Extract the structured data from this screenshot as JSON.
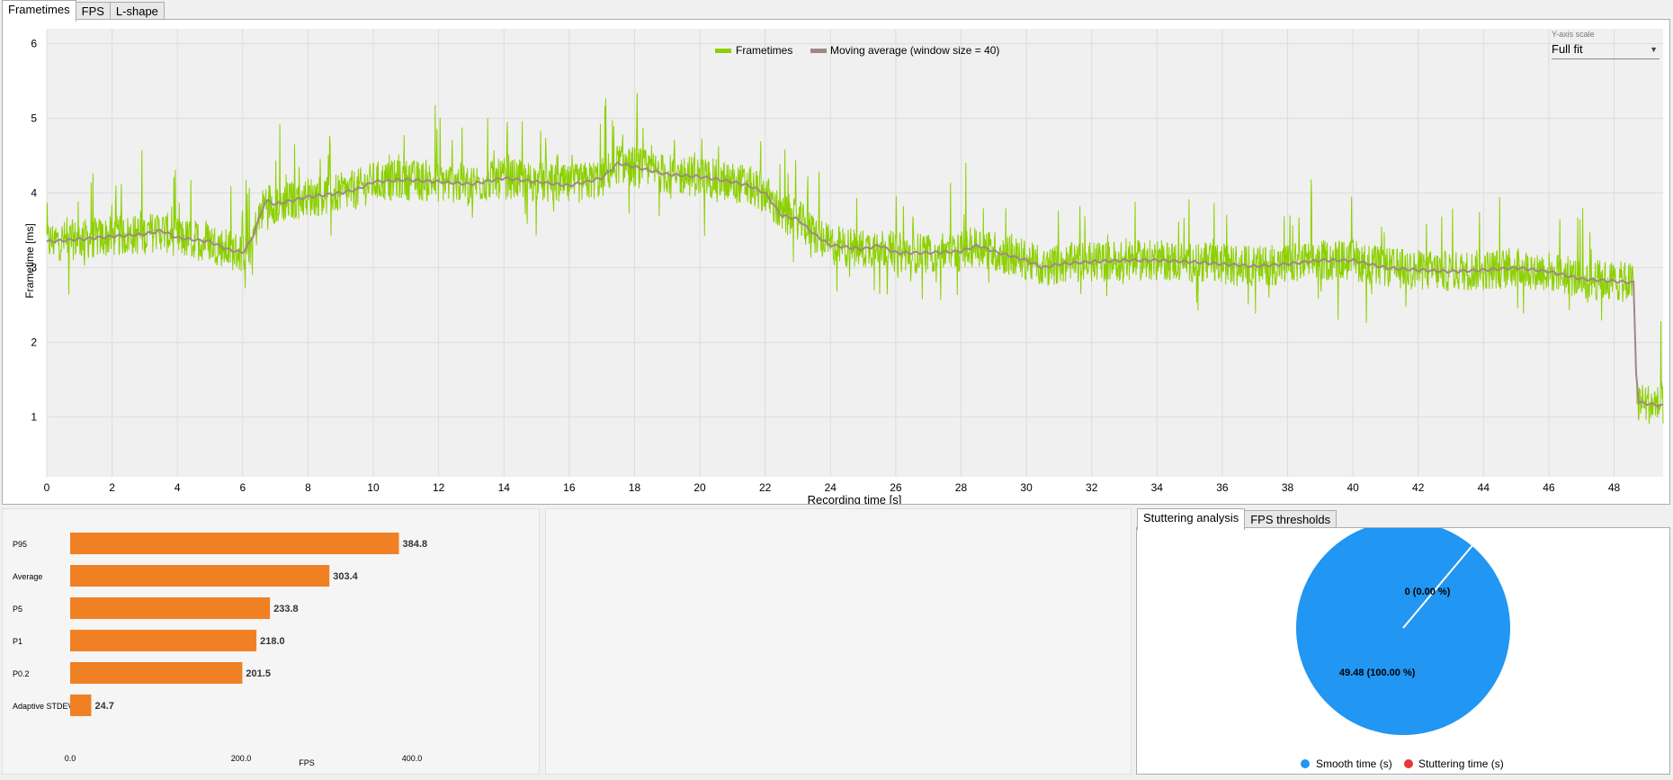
{
  "top_tabs": [
    {
      "label": "Frametimes",
      "active": true
    },
    {
      "label": "FPS",
      "active": false
    },
    {
      "label": "L-shape",
      "active": false
    }
  ],
  "frametime_chart": {
    "chart_data": {
      "type": "line",
      "xlabel": "Recording time [s]",
      "ylabel": "Frametime [ms]",
      "xlim": [
        0,
        49.5
      ],
      "ylim": [
        0.2,
        6.2
      ],
      "x_ticks": [
        "0",
        "2",
        "4",
        "6",
        "8",
        "10",
        "12",
        "14",
        "16",
        "18",
        "20",
        "22",
        "24",
        "26",
        "28",
        "30",
        "32",
        "34",
        "36",
        "38",
        "40",
        "42",
        "44",
        "46",
        "48"
      ],
      "y_ticks": [
        "1",
        "2",
        "3",
        "4",
        "5",
        "6"
      ],
      "grid": true,
      "legend_position": "top-center",
      "series": [
        {
          "name": "Frametimes",
          "color": "#8cd000",
          "noisy": true
        },
        {
          "name": "Moving average (window size = 40)",
          "color": "#9c8a86"
        }
      ],
      "moving_average": [
        [
          0,
          3.35
        ],
        [
          1,
          3.38
        ],
        [
          2,
          3.42
        ],
        [
          3,
          3.45
        ],
        [
          3.5,
          3.5
        ],
        [
          4,
          3.4
        ],
        [
          5,
          3.35
        ],
        [
          5.5,
          3.25
        ],
        [
          6,
          3.2
        ],
        [
          6.3,
          3.4
        ],
        [
          6.7,
          3.9
        ],
        [
          7,
          3.85
        ],
        [
          7.5,
          3.9
        ],
        [
          8,
          3.95
        ],
        [
          9,
          4.0
        ],
        [
          9.5,
          4.05
        ],
        [
          10,
          4.15
        ],
        [
          11,
          4.18
        ],
        [
          12,
          4.15
        ],
        [
          13,
          4.12
        ],
        [
          14,
          4.2
        ],
        [
          15,
          4.15
        ],
        [
          16,
          4.1
        ],
        [
          16.5,
          4.15
        ],
        [
          17,
          4.2
        ],
        [
          17.5,
          4.4
        ],
        [
          18,
          4.35
        ],
        [
          19,
          4.25
        ],
        [
          20,
          4.22
        ],
        [
          21,
          4.15
        ],
        [
          21.5,
          4.1
        ],
        [
          22,
          4.0
        ],
        [
          22.5,
          3.7
        ],
        [
          23,
          3.65
        ],
        [
          23.5,
          3.45
        ],
        [
          24,
          3.3
        ],
        [
          25,
          3.25
        ],
        [
          25.5,
          3.3
        ],
        [
          26,
          3.2
        ],
        [
          27,
          3.2
        ],
        [
          28,
          3.22
        ],
        [
          28.5,
          3.3
        ],
        [
          29,
          3.22
        ],
        [
          30,
          3.1
        ],
        [
          30.5,
          3.0
        ],
        [
          31,
          3.05
        ],
        [
          32,
          3.08
        ],
        [
          33,
          3.1
        ],
        [
          34,
          3.1
        ],
        [
          35,
          3.08
        ],
        [
          36,
          3.05
        ],
        [
          37,
          3.02
        ],
        [
          38,
          3.05
        ],
        [
          39,
          3.1
        ],
        [
          40,
          3.1
        ],
        [
          41,
          3.0
        ],
        [
          42,
          2.97
        ],
        [
          43,
          2.95
        ],
        [
          44,
          2.97
        ],
        [
          45,
          3.0
        ],
        [
          46,
          2.95
        ],
        [
          47,
          2.85
        ],
        [
          48,
          2.82
        ],
        [
          48.6,
          2.8
        ],
        [
          48.7,
          1.2
        ],
        [
          49.5,
          1.15
        ]
      ]
    },
    "y_scale": {
      "label": "Y-axis scale",
      "value": "Full fit"
    }
  },
  "bar_chart": {
    "chart_data": {
      "type": "bar",
      "orientation": "horizontal",
      "categories": [
        "P95",
        "Average",
        "P5",
        "P1",
        "P0.2",
        "Adaptive STDEV"
      ],
      "values": [
        384.8,
        303.4,
        233.8,
        218.0,
        201.5,
        24.7
      ],
      "value_labels": [
        "384.8",
        "303.4",
        "233.8",
        "218.0",
        "201.5",
        "24.7"
      ],
      "xlabel": "FPS",
      "x_ticks": [
        "0.0",
        "200.0",
        "400.0"
      ],
      "xlim": [
        0,
        400
      ],
      "color": "#f08024"
    }
  },
  "right_tabs": [
    {
      "label": "Stuttering analysis",
      "active": true
    },
    {
      "label": "FPS thresholds",
      "active": false
    }
  ],
  "pie_chart": {
    "chart_data": {
      "type": "pie",
      "slices": [
        {
          "name": "Smooth time (s)",
          "value": 49.48,
          "label": "49.48 (100.00 %)",
          "color": "#2196f3"
        },
        {
          "name": "Stuttering time (s)",
          "value": 0,
          "label": "0 (0.00 %)",
          "color": "#e53935"
        }
      ],
      "legend_position": "bottom"
    }
  }
}
